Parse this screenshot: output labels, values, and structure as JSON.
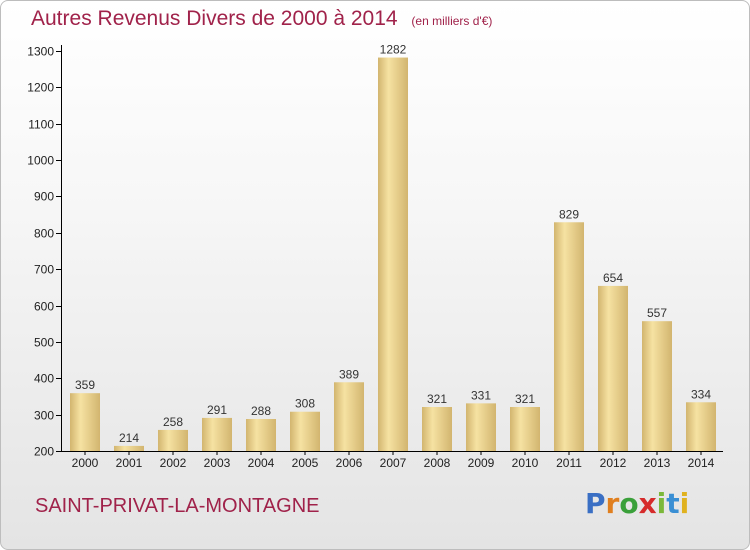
{
  "header": {
    "title": "Autres Revenus Divers de 2000 à 2014",
    "subtitle": "(en milliers d'€)"
  },
  "footer": {
    "commune": "SAINT-PRIVAT-LA-MONTAGNE",
    "logo_letters": [
      "P",
      "r",
      "o",
      "x",
      "i",
      "t",
      "i"
    ],
    "logo_colors": [
      "#3a6fc4",
      "#e07f1f",
      "#3aa03a",
      "#d62b2b",
      "#7bb83a",
      "#3a8fd4",
      "#e0b21f"
    ]
  },
  "colors": {
    "accent": "#a0224a",
    "bar_light": "#f6e2a2",
    "bar_dark": "#d2b56f",
    "axis": "#000000"
  },
  "chart_data": {
    "type": "bar",
    "categories": [
      "2000",
      "2001",
      "2002",
      "2003",
      "2004",
      "2005",
      "2006",
      "2007",
      "2008",
      "2009",
      "2010",
      "2011",
      "2012",
      "2013",
      "2014"
    ],
    "values": [
      359,
      214,
      258,
      291,
      288,
      308,
      389,
      1282,
      321,
      331,
      321,
      829,
      654,
      557,
      334
    ],
    "data_labels": [
      "359",
      "214",
      "258",
      "291",
      "288",
      "308",
      "389",
      "1282",
      "321",
      "331",
      "321",
      "829",
      "654",
      "557",
      "334"
    ],
    "ylim": [
      200,
      1300
    ],
    "yticks": [
      200,
      300,
      400,
      500,
      600,
      700,
      800,
      900,
      1000,
      1100,
      1200,
      1300
    ],
    "title": "Autres Revenus Divers de 2000 à 2014",
    "xlabel": "",
    "ylabel": "",
    "grid": false,
    "legend": "none"
  }
}
